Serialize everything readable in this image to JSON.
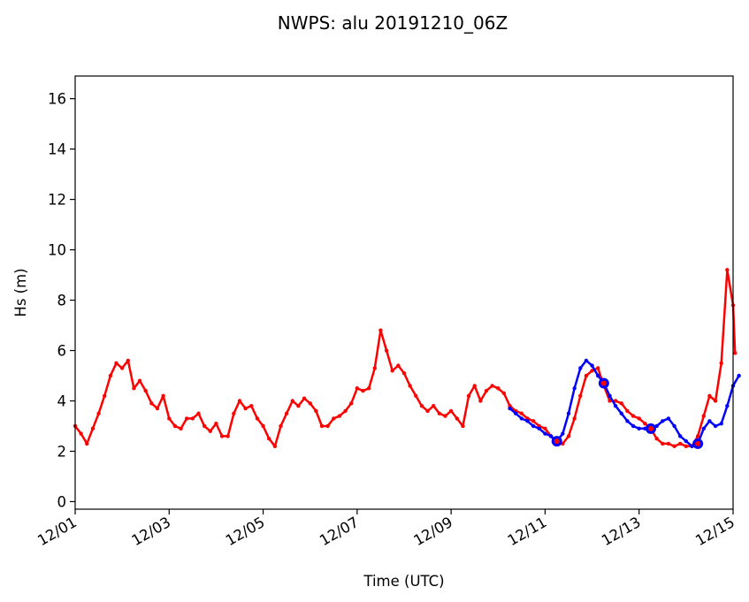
{
  "chart_data": {
    "type": "line",
    "title": "NWPS: alu 20191210_06Z",
    "xlabel": "Time (UTC)",
    "ylabel": "Hs (m)",
    "xlim": [
      "2019-12-01",
      "2019-12-15"
    ],
    "ylim": [
      -0.3,
      16.9
    ],
    "x_ticks": [
      "12/01",
      "12/03",
      "12/05",
      "12/07",
      "12/09",
      "12/11",
      "12/13",
      "12/15"
    ],
    "y_ticks": [
      "0",
      "2",
      "4",
      "6",
      "8",
      "10",
      "12",
      "14",
      "16"
    ],
    "grid": false,
    "legend": "none",
    "series": [
      {
        "color": "#ff0000",
        "marker": "dot",
        "points": [
          [
            "2019-12-01 00:00",
            3.0
          ],
          [
            "2019-12-01 03:00",
            2.7
          ],
          [
            "2019-12-01 06:00",
            2.3
          ],
          [
            "2019-12-01 09:00",
            2.9
          ],
          [
            "2019-12-01 12:00",
            3.5
          ],
          [
            "2019-12-01 15:00",
            4.2
          ],
          [
            "2019-12-01 18:00",
            5.0
          ],
          [
            "2019-12-01 21:00",
            5.5
          ],
          [
            "2019-12-02 00:00",
            5.3
          ],
          [
            "2019-12-02 03:00",
            5.6
          ],
          [
            "2019-12-02 06:00",
            4.5
          ],
          [
            "2019-12-02 09:00",
            4.8
          ],
          [
            "2019-12-02 12:00",
            4.4
          ],
          [
            "2019-12-02 15:00",
            3.9
          ],
          [
            "2019-12-02 18:00",
            3.7
          ],
          [
            "2019-12-02 21:00",
            4.2
          ],
          [
            "2019-12-03 00:00",
            3.3
          ],
          [
            "2019-12-03 03:00",
            3.0
          ],
          [
            "2019-12-03 06:00",
            2.9
          ],
          [
            "2019-12-03 09:00",
            3.3
          ],
          [
            "2019-12-03 12:00",
            3.3
          ],
          [
            "2019-12-03 15:00",
            3.5
          ],
          [
            "2019-12-03 18:00",
            3.0
          ],
          [
            "2019-12-03 21:00",
            2.8
          ],
          [
            "2019-12-04 00:00",
            3.1
          ],
          [
            "2019-12-04 03:00",
            2.6
          ],
          [
            "2019-12-04 06:00",
            2.6
          ],
          [
            "2019-12-04 09:00",
            3.5
          ],
          [
            "2019-12-04 12:00",
            4.0
          ],
          [
            "2019-12-04 15:00",
            3.7
          ],
          [
            "2019-12-04 18:00",
            3.8
          ],
          [
            "2019-12-04 21:00",
            3.3
          ],
          [
            "2019-12-05 00:00",
            3.0
          ],
          [
            "2019-12-05 03:00",
            2.5
          ],
          [
            "2019-12-05 06:00",
            2.2
          ],
          [
            "2019-12-05 09:00",
            3.0
          ],
          [
            "2019-12-05 12:00",
            3.5
          ],
          [
            "2019-12-05 15:00",
            4.0
          ],
          [
            "2019-12-05 18:00",
            3.8
          ],
          [
            "2019-12-05 21:00",
            4.1
          ],
          [
            "2019-12-06 00:00",
            3.9
          ],
          [
            "2019-12-06 03:00",
            3.6
          ],
          [
            "2019-12-06 06:00",
            3.0
          ],
          [
            "2019-12-06 09:00",
            3.0
          ],
          [
            "2019-12-06 12:00",
            3.3
          ],
          [
            "2019-12-06 15:00",
            3.4
          ],
          [
            "2019-12-06 18:00",
            3.6
          ],
          [
            "2019-12-06 21:00",
            3.9
          ],
          [
            "2019-12-07 00:00",
            4.5
          ],
          [
            "2019-12-07 03:00",
            4.4
          ],
          [
            "2019-12-07 06:00",
            4.5
          ],
          [
            "2019-12-07 09:00",
            5.3
          ],
          [
            "2019-12-07 12:00",
            6.8
          ],
          [
            "2019-12-07 15:00",
            6.0
          ],
          [
            "2019-12-07 18:00",
            5.2
          ],
          [
            "2019-12-07 21:00",
            5.4
          ],
          [
            "2019-12-08 00:00",
            5.1
          ],
          [
            "2019-12-08 03:00",
            4.6
          ],
          [
            "2019-12-08 06:00",
            4.2
          ],
          [
            "2019-12-08 09:00",
            3.8
          ],
          [
            "2019-12-08 12:00",
            3.6
          ],
          [
            "2019-12-08 15:00",
            3.8
          ],
          [
            "2019-12-08 18:00",
            3.5
          ],
          [
            "2019-12-08 21:00",
            3.4
          ],
          [
            "2019-12-09 00:00",
            3.6
          ],
          [
            "2019-12-09 03:00",
            3.3
          ],
          [
            "2019-12-09 06:00",
            3.0
          ],
          [
            "2019-12-09 09:00",
            4.2
          ],
          [
            "2019-12-09 12:00",
            4.6
          ],
          [
            "2019-12-09 15:00",
            4.0
          ],
          [
            "2019-12-09 18:00",
            4.4
          ],
          [
            "2019-12-09 21:00",
            4.6
          ],
          [
            "2019-12-10 00:00",
            4.5
          ],
          [
            "2019-12-10 03:00",
            4.3
          ],
          [
            "2019-12-10 06:00",
            3.8
          ],
          [
            "2019-12-10 09:00",
            3.6
          ],
          [
            "2019-12-10 12:00",
            3.5
          ],
          [
            "2019-12-10 15:00",
            3.3
          ],
          [
            "2019-12-10 18:00",
            3.2
          ],
          [
            "2019-12-10 21:00",
            3.0
          ],
          [
            "2019-12-11 00:00",
            2.9
          ],
          [
            "2019-12-11 03:00",
            2.6
          ],
          [
            "2019-12-11 06:00",
            2.3
          ],
          [
            "2019-12-11 09:00",
            2.3
          ],
          [
            "2019-12-11 12:00",
            2.6
          ],
          [
            "2019-12-11 15:00",
            3.3
          ],
          [
            "2019-12-11 18:00",
            4.2
          ],
          [
            "2019-12-11 21:00",
            5.0
          ],
          [
            "2019-12-12 00:00",
            5.2
          ],
          [
            "2019-12-12 03:00",
            5.3
          ],
          [
            "2019-12-12 06:00",
            4.6
          ],
          [
            "2019-12-12 09:00",
            4.0
          ],
          [
            "2019-12-12 12:00",
            4.0
          ],
          [
            "2019-12-12 15:00",
            3.9
          ],
          [
            "2019-12-12 18:00",
            3.6
          ],
          [
            "2019-12-12 21:00",
            3.4
          ],
          [
            "2019-12-13 00:00",
            3.3
          ],
          [
            "2019-12-13 03:00",
            3.1
          ],
          [
            "2019-12-13 06:00",
            2.9
          ],
          [
            "2019-12-13 09:00",
            2.5
          ],
          [
            "2019-12-13 12:00",
            2.3
          ],
          [
            "2019-12-13 15:00",
            2.3
          ],
          [
            "2019-12-13 18:00",
            2.2
          ],
          [
            "2019-12-13 21:00",
            2.3
          ],
          [
            "2019-12-14 00:00",
            2.2
          ],
          [
            "2019-12-14 03:00",
            2.2
          ],
          [
            "2019-12-14 06:00",
            2.6
          ],
          [
            "2019-12-14 09:00",
            3.4
          ],
          [
            "2019-12-14 12:00",
            4.2
          ],
          [
            "2019-12-14 15:00",
            4.0
          ],
          [
            "2019-12-14 18:00",
            5.5
          ],
          [
            "2019-12-14 21:00",
            9.2
          ],
          [
            "2019-12-15 00:00",
            7.8
          ],
          [
            "2019-12-15 01:00",
            5.9
          ]
        ]
      },
      {
        "color": "#0000ff",
        "marker": "dot",
        "points": [
          [
            "2019-12-10 06:00",
            3.7
          ],
          [
            "2019-12-10 09:00",
            3.5
          ],
          [
            "2019-12-10 12:00",
            3.3
          ],
          [
            "2019-12-10 15:00",
            3.2
          ],
          [
            "2019-12-10 18:00",
            3.0
          ],
          [
            "2019-12-10 21:00",
            2.9
          ],
          [
            "2019-12-11 00:00",
            2.7
          ],
          [
            "2019-12-11 03:00",
            2.6
          ],
          [
            "2019-12-11 06:00",
            2.4
          ],
          [
            "2019-12-11 09:00",
            2.7
          ],
          [
            "2019-12-11 12:00",
            3.5
          ],
          [
            "2019-12-11 15:00",
            4.5
          ],
          [
            "2019-12-11 18:00",
            5.3
          ],
          [
            "2019-12-11 21:00",
            5.6
          ],
          [
            "2019-12-12 00:00",
            5.4
          ],
          [
            "2019-12-12 03:00",
            5.0
          ],
          [
            "2019-12-12 06:00",
            4.7
          ],
          [
            "2019-12-12 09:00",
            4.2
          ],
          [
            "2019-12-12 12:00",
            3.8
          ],
          [
            "2019-12-12 15:00",
            3.5
          ],
          [
            "2019-12-12 18:00",
            3.2
          ],
          [
            "2019-12-12 21:00",
            3.0
          ],
          [
            "2019-12-13 00:00",
            2.9
          ],
          [
            "2019-12-13 03:00",
            2.9
          ],
          [
            "2019-12-13 06:00",
            2.9
          ],
          [
            "2019-12-13 09:00",
            3.0
          ],
          [
            "2019-12-13 12:00",
            3.2
          ],
          [
            "2019-12-13 15:00",
            3.3
          ],
          [
            "2019-12-13 18:00",
            3.0
          ],
          [
            "2019-12-13 21:00",
            2.6
          ],
          [
            "2019-12-14 00:00",
            2.4
          ],
          [
            "2019-12-14 03:00",
            2.2
          ],
          [
            "2019-12-14 06:00",
            2.3
          ],
          [
            "2019-12-14 09:00",
            2.9
          ],
          [
            "2019-12-14 12:00",
            3.2
          ],
          [
            "2019-12-14 15:00",
            3.0
          ],
          [
            "2019-12-14 18:00",
            3.1
          ],
          [
            "2019-12-14 21:00",
            3.8
          ],
          [
            "2019-12-15 00:00",
            4.6
          ],
          [
            "2019-12-15 03:00",
            5.0
          ]
        ]
      }
    ],
    "highlight_points": [
      {
        "x": "2019-12-11 06:00",
        "y": 2.4,
        "color": "#0000ff",
        "inner": "#ff0000"
      },
      {
        "x": "2019-12-12 06:00",
        "y": 4.7,
        "color": "#0000ff",
        "inner": "#ff0000"
      },
      {
        "x": "2019-12-13 06:00",
        "y": 2.9,
        "color": "#0000ff",
        "inner": "#ff0000"
      },
      {
        "x": "2019-12-14 06:00",
        "y": 2.3,
        "color": "#0000ff",
        "inner": "#ff0000"
      }
    ]
  }
}
